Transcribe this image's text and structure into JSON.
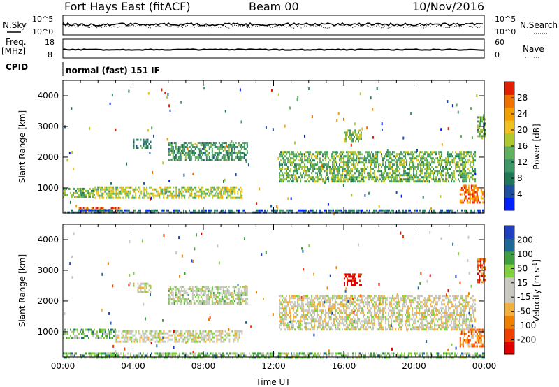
{
  "header": {
    "title": "Fort Hays East (fitACF)",
    "beam": "Beam 00",
    "date": "10/Nov/2016"
  },
  "top_panels": {
    "nsky_label": "N.Sky",
    "nsearch_label": "N.Search",
    "noise_ticks_left": [
      "10^5",
      "10^0"
    ],
    "noise_ticks_right": [
      "10^5",
      "10^0"
    ],
    "freq_label": "Freq.",
    "freq_unit": "[MHz]",
    "freq_ticks": [
      "18",
      "8"
    ],
    "nave_label": "Nave",
    "nave_ticks": [
      "60",
      "0"
    ],
    "cpid_label": "CPID",
    "cpid_text": "normal (fast) 151 IF"
  },
  "chart_data": [
    {
      "type": "heatmap",
      "title": "",
      "xlabel": "Time UT",
      "ylabel": "Slant Range [km]",
      "x_ticks": [
        "00:00",
        "04:00",
        "08:00",
        "12:00",
        "16:00",
        "20:00",
        "00:00"
      ],
      "y_ticks": [
        "1000",
        "2000",
        "3000",
        "4000"
      ],
      "xlim_hours": [
        0,
        24
      ],
      "ylim_km": [
        180,
        4500
      ],
      "colorbar": {
        "label": "Power [dB]",
        "ticks": [
          "28",
          "24",
          "20",
          "16",
          "12",
          "8",
          "4"
        ],
        "range": [
          0,
          30
        ],
        "colors": [
          "#0020ff",
          "#2050a0",
          "#207858",
          "#409868",
          "#60b060",
          "#b0c830",
          "#f0c020",
          "#f0a000",
          "#f07000",
          "#e02000"
        ]
      },
      "echo_regions": [
        {
          "t0": 0.0,
          "t1": 1.8,
          "r0": 700,
          "r1": 1000,
          "level": 0.45
        },
        {
          "t0": 1.8,
          "t1": 10.2,
          "r0": 700,
          "r1": 1050,
          "level": 0.55
        },
        {
          "t0": 4.0,
          "t1": 5.0,
          "r0": 2300,
          "r1": 2600,
          "level": 0.3
        },
        {
          "t0": 6.0,
          "t1": 10.5,
          "r0": 1900,
          "r1": 2500,
          "level": 0.35
        },
        {
          "t0": 0.9,
          "t1": 3.3,
          "r0": 200,
          "r1": 380,
          "level": 0.85
        },
        {
          "t0": 0.0,
          "t1": 24.0,
          "r0": 190,
          "r1": 300,
          "level": 0.2
        },
        {
          "t0": 12.3,
          "t1": 23.5,
          "r0": 1200,
          "r1": 2200,
          "level": 0.45
        },
        {
          "t0": 16.0,
          "t1": 17.0,
          "r0": 2500,
          "r1": 2900,
          "level": 0.5
        },
        {
          "t0": 22.6,
          "t1": 24.0,
          "r0": 500,
          "r1": 1100,
          "level": 0.8
        },
        {
          "t0": 23.6,
          "t1": 24.0,
          "r0": 2600,
          "r1": 3400,
          "level": 0.4
        }
      ]
    },
    {
      "type": "heatmap",
      "title": "",
      "xlabel": "Time UT",
      "ylabel": "Slant Range [km]",
      "x_ticks": [
        "00:00",
        "04:00",
        "08:00",
        "12:00",
        "16:00",
        "20:00",
        "00:00"
      ],
      "y_ticks": [
        "1000",
        "2000",
        "3000",
        "4000"
      ],
      "xlim_hours": [
        0,
        24
      ],
      "ylim_km": [
        180,
        4500
      ],
      "colorbar": {
        "label": "Velocity [m s^-1]",
        "ticks": [
          "200",
          "100",
          "50",
          "15",
          "-15",
          "-50",
          "-100",
          "-200"
        ],
        "range": [
          -250,
          250
        ],
        "colors": [
          "#e00000",
          "#f04000",
          "#f08000",
          "#f0b040",
          "#c8c8c0",
          "#c8c8c0",
          "#80d040",
          "#40a040",
          "#206898",
          "#2040c0"
        ]
      },
      "echo_regions": [
        {
          "t0": 0.0,
          "t1": 3.0,
          "r0": 800,
          "r1": 1100,
          "level": 0.7
        },
        {
          "t0": 3.0,
          "t1": 10.2,
          "r0": 700,
          "r1": 1050,
          "level": 0.5
        },
        {
          "t0": 4.0,
          "t1": 5.0,
          "r0": 2300,
          "r1": 2600,
          "level": 0.5
        },
        {
          "t0": 6.0,
          "t1": 10.5,
          "r0": 1900,
          "r1": 2500,
          "level": 0.55
        },
        {
          "t0": 0.0,
          "t1": 24.0,
          "r0": 190,
          "r1": 330,
          "level": 0.65
        },
        {
          "t0": 12.3,
          "t1": 23.5,
          "r0": 1100,
          "r1": 2200,
          "level": 0.48
        },
        {
          "t0": 16.0,
          "t1": 17.0,
          "r0": 2500,
          "r1": 2900,
          "level": 0.03
        },
        {
          "t0": 22.6,
          "t1": 24.0,
          "r0": 500,
          "r1": 1100,
          "level": 0.3
        },
        {
          "t0": 23.6,
          "t1": 24.0,
          "r0": 2600,
          "r1": 3400,
          "level": 0.2
        }
      ]
    }
  ]
}
